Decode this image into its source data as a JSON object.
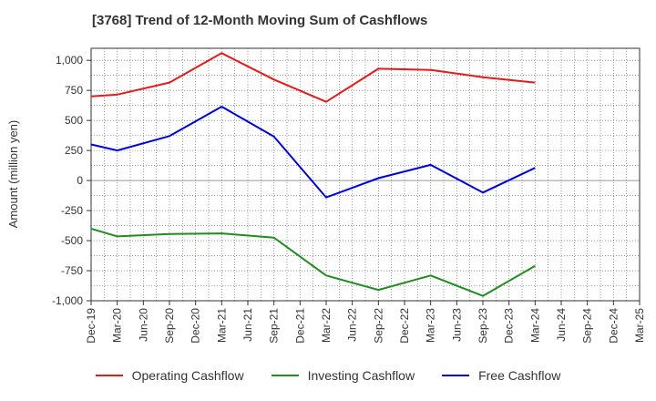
{
  "chart_data": {
    "type": "line",
    "title": "[3768]  Trend of 12-Month Moving Sum of Cashflows",
    "ylabel": "Amount (million yen)",
    "xlabel": "",
    "ylim": [
      -1000,
      1100
    ],
    "yticks": [
      -1000,
      -750,
      -500,
      -250,
      0,
      250,
      500,
      750,
      1000
    ],
    "ytick_labels": [
      "-1,000",
      "-750",
      "-500",
      "-250",
      "0",
      "250",
      "500",
      "750",
      "1,000"
    ],
    "categories": [
      "Dec-19",
      "Mar-20",
      "Jun-20",
      "Sep-20",
      "Dec-20",
      "Mar-21",
      "Jun-21",
      "Sep-21",
      "Dec-21",
      "Mar-22",
      "Jun-22",
      "Sep-22",
      "Dec-22",
      "Mar-23",
      "Jun-23",
      "Sep-23",
      "Dec-23",
      "Mar-24",
      "Jun-24",
      "Sep-24",
      "Dec-24",
      "Mar-25"
    ],
    "grid": true,
    "legend_position": "bottom",
    "series": [
      {
        "name": "Operating Cashflow",
        "color": "#e41a1c",
        "values": [
          700,
          715,
          null,
          815,
          null,
          1060,
          null,
          840,
          null,
          655,
          null,
          930,
          null,
          920,
          null,
          860,
          null,
          815,
          null,
          null,
          null,
          null
        ]
      },
      {
        "name": "Investing Cashflow",
        "color": "#228b22",
        "values": [
          -400,
          -465,
          null,
          -445,
          null,
          -440,
          null,
          -475,
          null,
          -790,
          null,
          -910,
          null,
          -790,
          null,
          -960,
          null,
          -710,
          null,
          null,
          null,
          null
        ]
      },
      {
        "name": "Free Cashflow",
        "color": "#0000dd",
        "values": [
          300,
          250,
          null,
          370,
          null,
          615,
          null,
          365,
          null,
          -140,
          null,
          20,
          null,
          130,
          null,
          -100,
          null,
          105,
          null,
          null,
          null,
          null
        ]
      }
    ]
  }
}
